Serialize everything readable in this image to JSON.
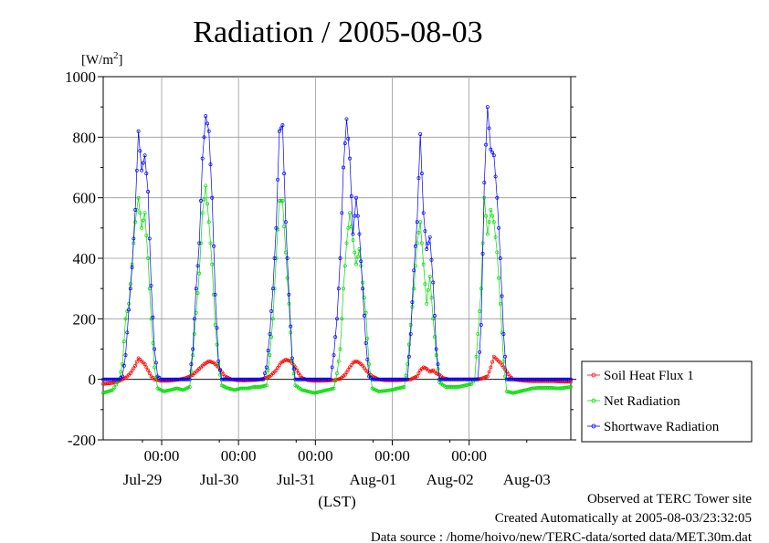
{
  "chart_data": {
    "type": "line",
    "title": "Radiation / 2005-08-03",
    "ylabel": "[W/m²]",
    "ylabel_base": "[W/m",
    "ylabel_sup": "2",
    "ylabel_end": "]",
    "xlabel": "(LST)",
    "ylim": [
      -200,
      1000
    ],
    "yticks": [
      "1000",
      "800",
      "600",
      "400",
      "200",
      "0",
      "-200"
    ],
    "x_unit": "hours since the start of the plotted window (window = 6.09 days, starting 2005-07-28 ~05:45 LST)",
    "xlim": [
      0,
      146
    ],
    "xticks_time": [
      {
        "x": 18.25,
        "label": "00:00"
      },
      {
        "x": 42.25,
        "label": "00:00"
      },
      {
        "x": 66.25,
        "label": "00:00"
      },
      {
        "x": 90.25,
        "label": "00:00"
      },
      {
        "x": 114.25,
        "label": "00:00"
      }
    ],
    "xticks_date": [
      {
        "x": 12.25,
        "label": "Jul-29"
      },
      {
        "x": 36.25,
        "label": "Jul-30"
      },
      {
        "x": 60.25,
        "label": "Jul-31"
      },
      {
        "x": 84.25,
        "label": "Aug-01"
      },
      {
        "x": 108.25,
        "label": "Aug-02"
      },
      {
        "x": 132.25,
        "label": "Aug-03"
      }
    ],
    "grid": true,
    "legend_position": "right-bottom",
    "series": [
      {
        "name": "Soil Heat Flux 1",
        "color": "#ff0000",
        "points": [
          [
            0,
            -15
          ],
          [
            3,
            -12
          ],
          [
            5,
            -5
          ],
          [
            7,
            5
          ],
          [
            8.5,
            20
          ],
          [
            10,
            45
          ],
          [
            11,
            70
          ],
          [
            12,
            60
          ],
          [
            13,
            50
          ],
          [
            14,
            30
          ],
          [
            15,
            10
          ],
          [
            16,
            0
          ],
          [
            18,
            -5
          ],
          [
            20,
            -5
          ],
          [
            22,
            -3
          ],
          [
            24,
            0
          ],
          [
            26,
            5
          ],
          [
            28,
            15
          ],
          [
            30,
            35
          ],
          [
            31.5,
            50
          ],
          [
            33,
            60
          ],
          [
            34.5,
            55
          ],
          [
            36,
            40
          ],
          [
            37,
            25
          ],
          [
            38,
            10
          ],
          [
            40,
            0
          ],
          [
            42,
            -3
          ],
          [
            44,
            -4
          ],
          [
            46,
            -3
          ],
          [
            48,
            -2
          ],
          [
            50,
            2
          ],
          [
            52,
            10
          ],
          [
            54,
            30
          ],
          [
            55.5,
            55
          ],
          [
            57,
            65
          ],
          [
            58.5,
            60
          ],
          [
            60,
            40
          ],
          [
            61,
            20
          ],
          [
            62,
            5
          ],
          [
            64,
            -3
          ],
          [
            66,
            -5
          ],
          [
            68,
            -5
          ],
          [
            70,
            -4
          ],
          [
            72,
            -3
          ],
          [
            74,
            2
          ],
          [
            75.5,
            15
          ],
          [
            77,
            40
          ],
          [
            78,
            55
          ],
          [
            79,
            60
          ],
          [
            80,
            55
          ],
          [
            81,
            45
          ],
          [
            82,
            30
          ],
          [
            83,
            20
          ],
          [
            84,
            10
          ],
          [
            86,
            0
          ],
          [
            88,
            -3
          ],
          [
            90,
            -3
          ],
          [
            92,
            -3
          ],
          [
            94,
            -2
          ],
          [
            96,
            0
          ],
          [
            98,
            10
          ],
          [
            99,
            30
          ],
          [
            100,
            40
          ],
          [
            101,
            35
          ],
          [
            102,
            25
          ],
          [
            103,
            30
          ],
          [
            104,
            20
          ],
          [
            105,
            15
          ],
          [
            106,
            5
          ],
          [
            108,
            0
          ],
          [
            110,
            0
          ],
          [
            112,
            0
          ],
          [
            114,
            0
          ],
          [
            116,
            0
          ],
          [
            118,
            2
          ],
          [
            120,
            10
          ],
          [
            121,
            40
          ],
          [
            122,
            75
          ],
          [
            123,
            65
          ],
          [
            124,
            55
          ],
          [
            125,
            40
          ],
          [
            126,
            25
          ],
          [
            127,
            10
          ],
          [
            128,
            0
          ],
          [
            130,
            -3
          ],
          [
            132,
            -5
          ],
          [
            134,
            -6
          ],
          [
            136,
            -6
          ],
          [
            138,
            -6
          ],
          [
            140,
            -6
          ],
          [
            142,
            -7
          ],
          [
            144,
            -8
          ],
          [
            146,
            -8
          ]
        ]
      },
      {
        "name": "Net Radiation",
        "color": "#00dd00",
        "points": [
          [
            0,
            -45
          ],
          [
            3,
            -35
          ],
          [
            5,
            0
          ],
          [
            6,
            50
          ],
          [
            7,
            200
          ],
          [
            8,
            250
          ],
          [
            9,
            380
          ],
          [
            10,
            520
          ],
          [
            11,
            600
          ],
          [
            12,
            500
          ],
          [
            13,
            550
          ],
          [
            14,
            400
          ],
          [
            15,
            200
          ],
          [
            16,
            40
          ],
          [
            17,
            -30
          ],
          [
            19,
            -40
          ],
          [
            21,
            -35
          ],
          [
            23,
            -30
          ],
          [
            25,
            -35
          ],
          [
            27,
            -25
          ],
          [
            28,
            80
          ],
          [
            29,
            220
          ],
          [
            30,
            350
          ],
          [
            31,
            550
          ],
          [
            32,
            640
          ],
          [
            33,
            520
          ],
          [
            34,
            380
          ],
          [
            35,
            180
          ],
          [
            36,
            50
          ],
          [
            37,
            -20
          ],
          [
            39,
            -30
          ],
          [
            41,
            -35
          ],
          [
            43,
            -30
          ],
          [
            45,
            -30
          ],
          [
            47,
            -25
          ],
          [
            49,
            -25
          ],
          [
            51,
            -20
          ],
          [
            52,
            80
          ],
          [
            53,
            200
          ],
          [
            54,
            400
          ],
          [
            55,
            590
          ],
          [
            56,
            590
          ],
          [
            57,
            420
          ],
          [
            58,
            250
          ],
          [
            59,
            60
          ],
          [
            60,
            -20
          ],
          [
            62,
            -35
          ],
          [
            64,
            -40
          ],
          [
            66,
            -45
          ],
          [
            68,
            -40
          ],
          [
            70,
            -35
          ],
          [
            72,
            -30
          ],
          [
            73,
            20
          ],
          [
            74,
            100
          ],
          [
            75,
            300
          ],
          [
            76,
            450
          ],
          [
            77,
            550
          ],
          [
            78,
            460
          ],
          [
            79,
            380
          ],
          [
            80,
            430
          ],
          [
            81,
            320
          ],
          [
            82,
            220
          ],
          [
            83,
            50
          ],
          [
            84,
            -30
          ],
          [
            86,
            -40
          ],
          [
            88,
            -38
          ],
          [
            90,
            -35
          ],
          [
            92,
            -30
          ],
          [
            94,
            -25
          ],
          [
            95,
            50
          ],
          [
            96,
            180
          ],
          [
            97,
            300
          ],
          [
            98,
            450
          ],
          [
            99,
            520
          ],
          [
            100,
            380
          ],
          [
            101,
            250
          ],
          [
            102,
            340
          ],
          [
            103,
            200
          ],
          [
            104,
            80
          ],
          [
            105,
            -10
          ],
          [
            107,
            -25
          ],
          [
            109,
            -25
          ],
          [
            111,
            -25
          ],
          [
            113,
            -20
          ],
          [
            115,
            -15
          ],
          [
            116,
            0
          ],
          [
            117,
            150
          ],
          [
            118,
            300
          ],
          [
            119,
            600
          ],
          [
            120,
            480
          ],
          [
            121,
            560
          ],
          [
            122,
            520
          ],
          [
            123,
            420
          ],
          [
            124,
            250
          ],
          [
            125,
            60
          ],
          [
            126,
            -40
          ],
          [
            128,
            -45
          ],
          [
            130,
            -40
          ],
          [
            132,
            -35
          ],
          [
            134,
            -30
          ],
          [
            136,
            -28
          ],
          [
            138,
            -28
          ],
          [
            140,
            -28
          ],
          [
            142,
            -30
          ],
          [
            144,
            -28
          ],
          [
            146,
            -25
          ]
        ]
      },
      {
        "name": "Shortwave Radiation",
        "color": "#0000ff",
        "points": [
          [
            0,
            0
          ],
          [
            5,
            0
          ],
          [
            6,
            10
          ],
          [
            7,
            80
          ],
          [
            8,
            230
          ],
          [
            9,
            370
          ],
          [
            10,
            560
          ],
          [
            11,
            820
          ],
          [
            12,
            690
          ],
          [
            13,
            740
          ],
          [
            14,
            620
          ],
          [
            15,
            310
          ],
          [
            16,
            100
          ],
          [
            17,
            10
          ],
          [
            18,
            0
          ],
          [
            27,
            0
          ],
          [
            28,
            100
          ],
          [
            29,
            300
          ],
          [
            30,
            450
          ],
          [
            31,
            730
          ],
          [
            32,
            870
          ],
          [
            33,
            820
          ],
          [
            34,
            600
          ],
          [
            35,
            280
          ],
          [
            36,
            60
          ],
          [
            37,
            0
          ],
          [
            50,
            0
          ],
          [
            51,
            40
          ],
          [
            52,
            150
          ],
          [
            53,
            300
          ],
          [
            54,
            500
          ],
          [
            55,
            820
          ],
          [
            56,
            840
          ],
          [
            57,
            520
          ],
          [
            58,
            280
          ],
          [
            59,
            70
          ],
          [
            60,
            0
          ],
          [
            71,
            0
          ],
          [
            72,
            80
          ],
          [
            73,
            200
          ],
          [
            74,
            400
          ],
          [
            75,
            700
          ],
          [
            76,
            860
          ],
          [
            77,
            730
          ],
          [
            78,
            480
          ],
          [
            79,
            600
          ],
          [
            80,
            480
          ],
          [
            81,
            300
          ],
          [
            82,
            120
          ],
          [
            83,
            10
          ],
          [
            84,
            0
          ],
          [
            95,
            0
          ],
          [
            96,
            150
          ],
          [
            97,
            360
          ],
          [
            98,
            520
          ],
          [
            99,
            810
          ],
          [
            100,
            550
          ],
          [
            101,
            430
          ],
          [
            102,
            470
          ],
          [
            103,
            320
          ],
          [
            104,
            100
          ],
          [
            105,
            0
          ],
          [
            117,
            0
          ],
          [
            118,
            180
          ],
          [
            119,
            650
          ],
          [
            120,
            900
          ],
          [
            121,
            760
          ],
          [
            122,
            740
          ],
          [
            123,
            600
          ],
          [
            124,
            400
          ],
          [
            125,
            150
          ],
          [
            126,
            0
          ],
          [
            146,
            0
          ]
        ]
      }
    ]
  },
  "footer": {
    "line1": "Observed at TERC Tower site",
    "line2": "Created Automatically at 2005-08-03/23:32:05",
    "line3": "Data source : /home/hoivo/new/TERC-data/sorted  data/MET.30m.dat"
  }
}
